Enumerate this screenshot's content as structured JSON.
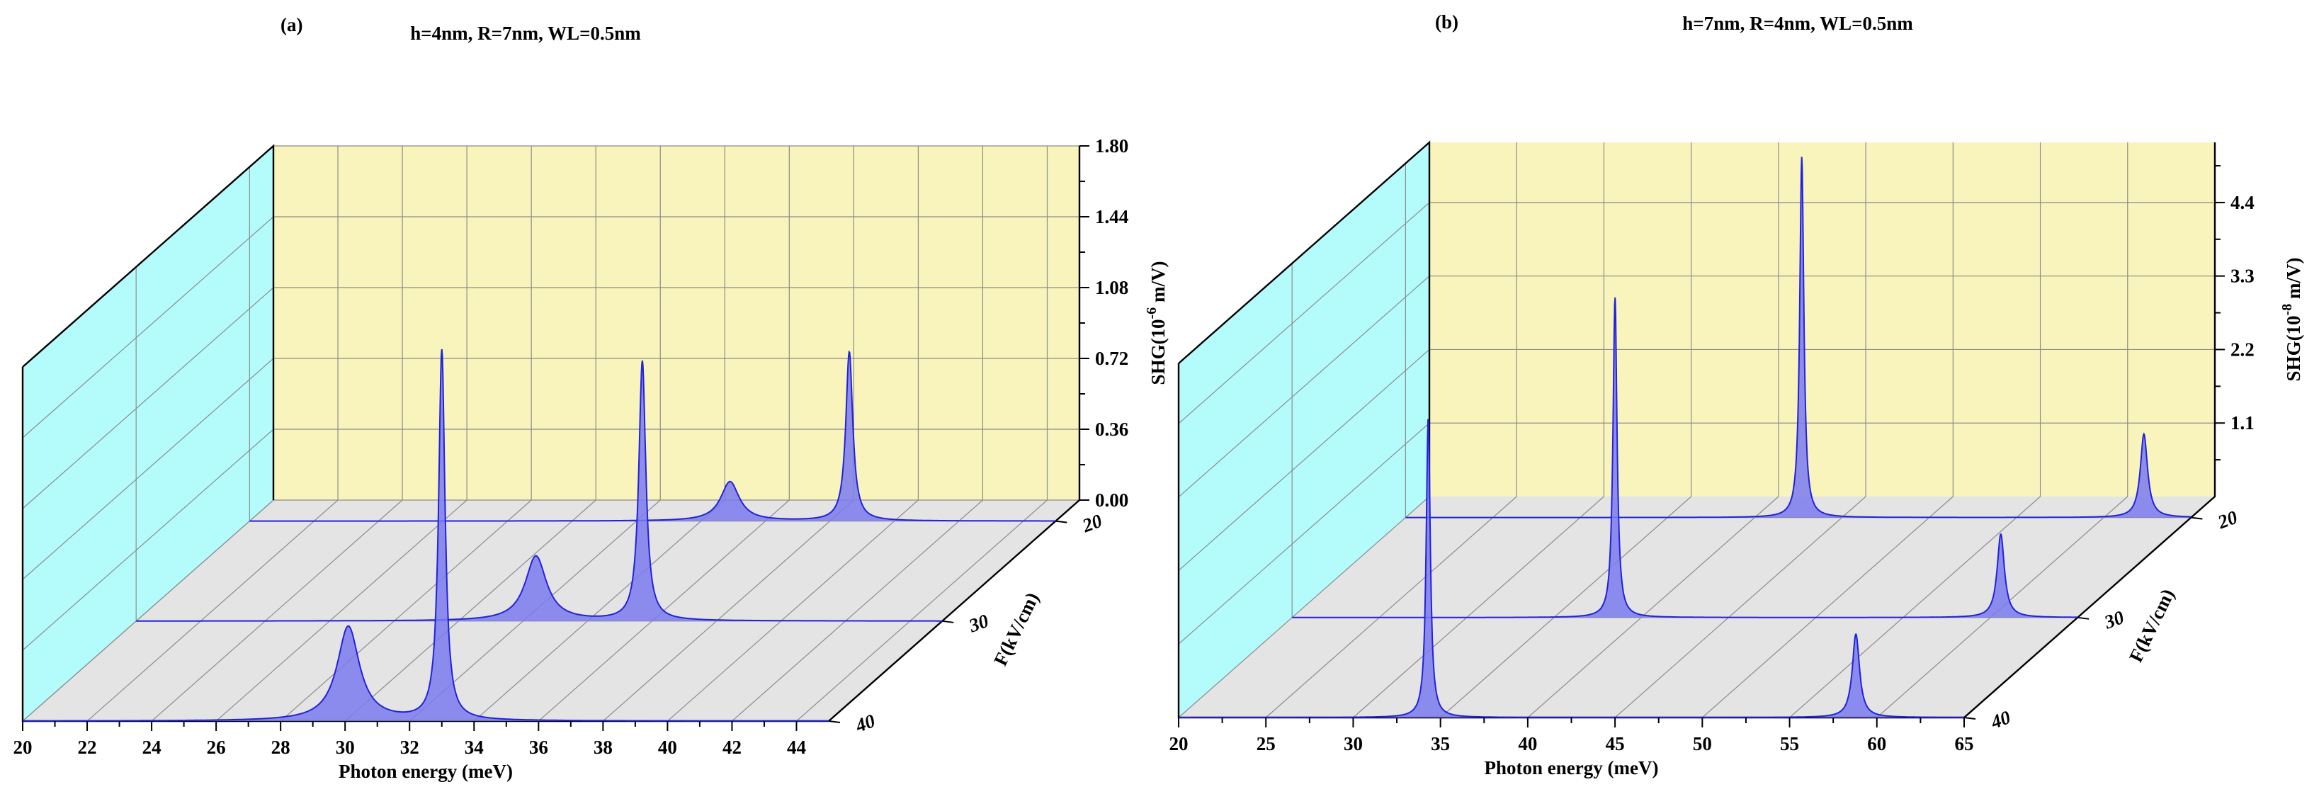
{
  "chart_data": [
    {
      "type": "area",
      "panel_label": "(a)",
      "title": "h=4nm, R=7nm, WL=0.5nm",
      "xlabel": "Photon energy (meV)",
      "ylabel": "SHG(10",
      "ylabel_exp": "-6",
      "ylabel_unit": " m/V)",
      "zlabel": "F(kV/cm)",
      "xlim": [
        20,
        45
      ],
      "x_ticks": [
        "20",
        "22",
        "24",
        "26",
        "28",
        "30",
        "32",
        "34",
        "36",
        "38",
        "40",
        "42",
        "44"
      ],
      "x_tick_values": [
        20,
        22,
        24,
        26,
        28,
        30,
        32,
        34,
        36,
        38,
        40,
        42,
        44
      ],
      "ylim": [
        0,
        1.8
      ],
      "y_ticks": [
        "0.00",
        "0.36",
        "0.72",
        "1.08",
        "1.44",
        "1.80"
      ],
      "y_tick_values": [
        0,
        0.36,
        0.72,
        1.08,
        1.44,
        1.8
      ],
      "z_ticks": [
        "20",
        "30",
        "40"
      ],
      "fill_color": "#7b7bf0",
      "line_color": "#2222dd",
      "back_wall_color": "#f8f4bc",
      "side_wall_color": "#b4fcfc",
      "floor_color": "#e4e4e4",
      "series": [
        {
          "name": "20",
          "peaks": [
            {
              "x": 34.9,
              "height": 0.2,
              "width": 0.35
            },
            {
              "x": 38.6,
              "height": 0.86,
              "width": 0.13
            }
          ]
        },
        {
          "name": "30",
          "peaks": [
            {
              "x": 32.4,
              "height": 0.33,
              "width": 0.4
            },
            {
              "x": 35.7,
              "height": 1.32,
              "width": 0.13
            }
          ]
        },
        {
          "name": "40",
          "peaks": [
            {
              "x": 30.1,
              "height": 0.48,
              "width": 0.42
            },
            {
              "x": 33.0,
              "height": 1.88,
              "width": 0.12
            }
          ]
        }
      ]
    },
    {
      "type": "area",
      "panel_label": "(b)",
      "title": "h=7nm, R=4nm, WL=0.5nm",
      "xlabel": "Photon energy (meV)",
      "ylabel": "SHG(10",
      "ylabel_exp": "-8",
      "ylabel_unit": " m/V)",
      "zlabel": "F(kV/cm)",
      "xlim": [
        20,
        65
      ],
      "x_ticks": [
        "20",
        "25",
        "30",
        "35",
        "40",
        "45",
        "50",
        "55",
        "60",
        "65"
      ],
      "x_tick_values": [
        20,
        25,
        30,
        35,
        40,
        45,
        50,
        55,
        60,
        65
      ],
      "ylim": [
        0,
        5.3
      ],
      "y_ticks": [
        "1.1",
        "2.2",
        "3.3",
        "4.4"
      ],
      "y_tick_values": [
        1.1,
        2.2,
        3.3,
        4.4
      ],
      "z_ticks": [
        "20",
        "30",
        "40"
      ],
      "fill_color": "#7b7bf0",
      "line_color": "#2222dd",
      "back_wall_color": "#f8f4bc",
      "side_wall_color": "#b4fcfc",
      "floor_color": "#e4e4e4",
      "series": [
        {
          "name": "20",
          "peaks": [
            {
              "x": 42.7,
              "height": 5.4,
              "width": 0.14
            },
            {
              "x": 62.3,
              "height": 1.25,
              "width": 0.25
            }
          ]
        },
        {
          "name": "30",
          "peaks": [
            {
              "x": 38.5,
              "height": 4.8,
              "width": 0.14
            },
            {
              "x": 60.6,
              "height": 1.25,
              "width": 0.25
            }
          ]
        },
        {
          "name": "40",
          "peaks": [
            {
              "x": 34.3,
              "height": 4.5,
              "width": 0.14
            },
            {
              "x": 58.8,
              "height": 1.25,
              "width": 0.25
            }
          ]
        }
      ]
    }
  ]
}
